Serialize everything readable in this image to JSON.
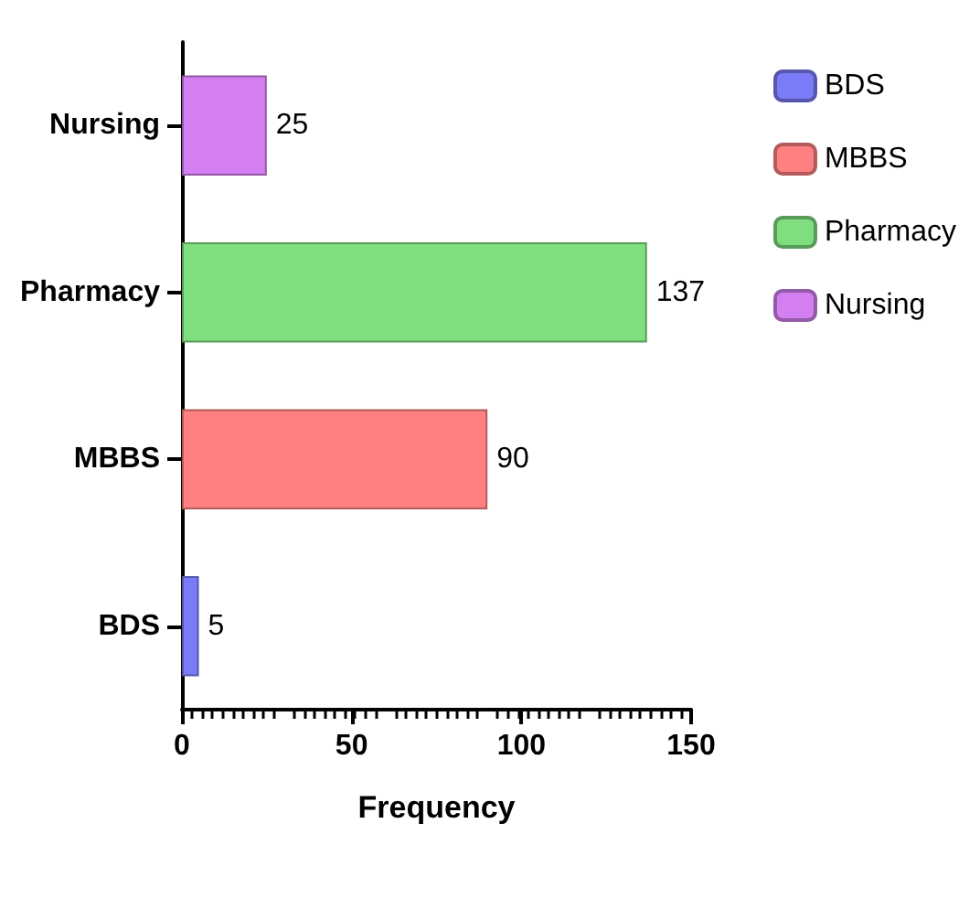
{
  "chart_data": {
    "type": "bar",
    "orientation": "horizontal",
    "xlabel": "Frequency",
    "categories": [
      "Nursing",
      "Pharmacy",
      "MBBS",
      "BDS"
    ],
    "series": [
      {
        "name": "BDS",
        "color": "#7b7bf7",
        "values": [
          null,
          null,
          null,
          5
        ]
      },
      {
        "name": "MBBS",
        "color": "#ff8080",
        "values": [
          null,
          null,
          90,
          null
        ]
      },
      {
        "name": "Pharmacy",
        "color": "#7fdf7f",
        "values": [
          null,
          137,
          null,
          null
        ]
      },
      {
        "name": "Nursing",
        "color": "#d37ff0",
        "values": [
          25,
          null,
          null,
          null
        ]
      }
    ],
    "xlim": [
      0,
      150
    ],
    "xticks": [
      0,
      50,
      100,
      150
    ],
    "data_labels": true,
    "grid": false,
    "legend": "top right"
  }
}
